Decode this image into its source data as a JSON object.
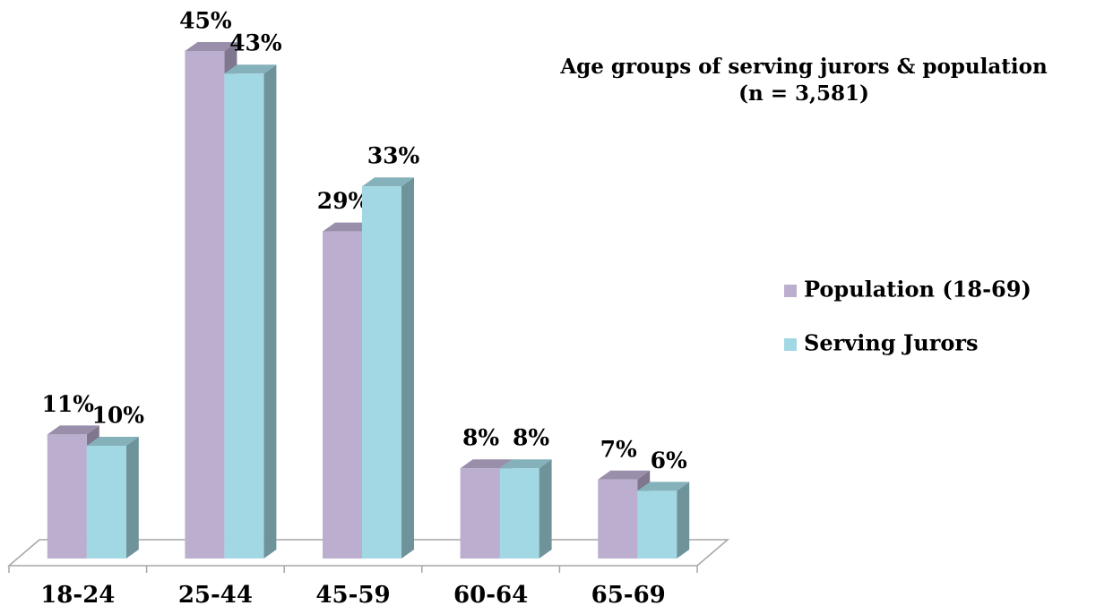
{
  "chart_data": {
    "type": "bar3d",
    "title": "Age groups of serving jurors & population",
    "subtitle": "(n = 3,581)",
    "categories": [
      "18-24",
      "25-44",
      "45-59",
      "60-64",
      "65-69"
    ],
    "series": [
      {
        "name": "Population (18-69)",
        "color": "#bcaecf",
        "values": [
          11,
          45,
          29,
          8,
          7
        ],
        "value_labels": [
          "11%",
          "45%",
          "29%",
          "8%",
          "7%"
        ]
      },
      {
        "name": "Serving Jurors",
        "color": "#a2d8e4",
        "values": [
          10,
          43,
          33,
          8,
          6
        ],
        "value_labels": [
          "10%",
          "43%",
          "33%",
          "8%",
          "6%"
        ]
      }
    ],
    "legend": "right"
  }
}
